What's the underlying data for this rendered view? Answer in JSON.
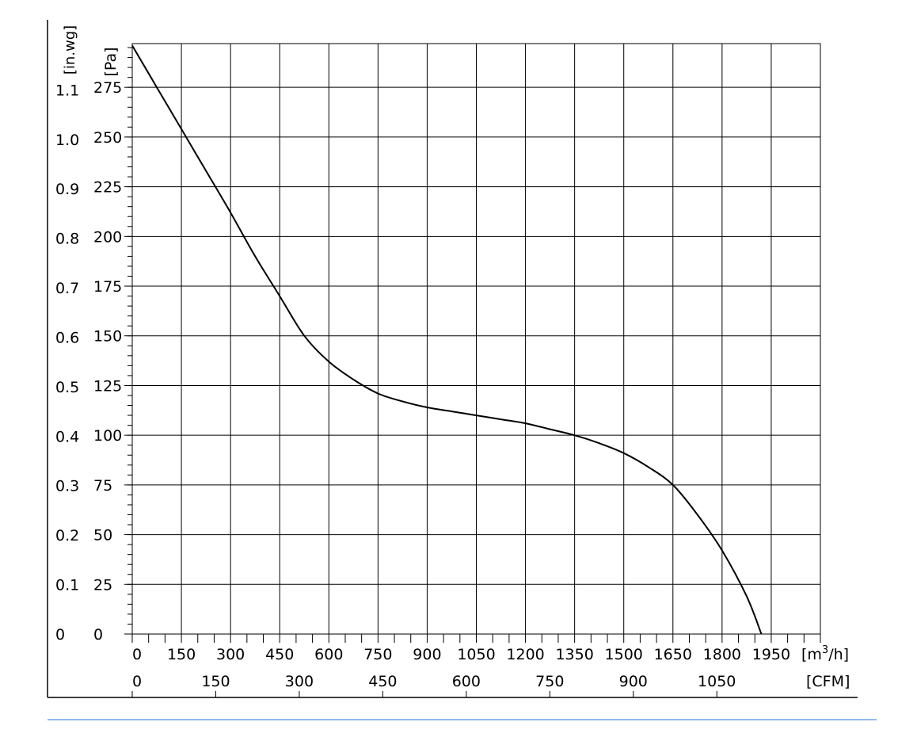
{
  "chart_data": {
    "type": "line",
    "title": "",
    "xlabel": "[m3/h]",
    "x_unit_label": {
      "base": "[m",
      "sup": "3",
      "rest": "/h]"
    },
    "x2_unit_label": "[CFM]",
    "y_unit_label": "[Pa]",
    "y2_unit_label": "[in.wg]",
    "xlim": [
      0,
      2100
    ],
    "ylim": [
      0,
      297
    ],
    "x_ticks": [
      0,
      150,
      300,
      450,
      600,
      750,
      900,
      1050,
      1200,
      1350,
      1500,
      1650,
      1800,
      1950
    ],
    "x_tick_labels": [
      "0",
      "150",
      "300",
      "450",
      "600",
      "750",
      "900",
      "1050",
      "1200",
      "1350",
      "1500",
      "1650",
      "1800",
      "1950"
    ],
    "cfm_ticks": [
      0,
      150,
      300,
      450,
      600,
      750,
      900,
      1050
    ],
    "cfm_tick_labels": [
      "0",
      "150",
      "300",
      "450",
      "600",
      "750",
      "900",
      "1050"
    ],
    "y_ticks": [
      0,
      25,
      50,
      75,
      100,
      125,
      150,
      175,
      200,
      225,
      250,
      275
    ],
    "y_tick_labels": [
      "0",
      "25",
      "50",
      "75",
      "100",
      "125",
      "150",
      "175",
      "200",
      "225",
      "250",
      "275"
    ],
    "inwg_ticks": [
      0,
      0.1,
      0.2,
      0.3,
      0.4,
      0.5,
      0.6,
      0.7,
      0.8,
      0.9,
      1.0,
      1.1
    ],
    "inwg_tick_labels": [
      "0",
      "0.1",
      "0.2",
      "0.3",
      "0.4",
      "0.5",
      "0.6",
      "0.7",
      "0.8",
      "0.9",
      "1.0",
      "1.1"
    ],
    "grid": true,
    "series": [
      {
        "x": [
          0,
          75,
          150,
          225,
          300,
          375,
          450,
          525,
          600,
          675,
          750,
          825,
          900,
          975,
          1050,
          1125,
          1200,
          1275,
          1350,
          1425,
          1500,
          1575,
          1650,
          1725,
          1800,
          1875,
          1920
        ],
        "values": [
          296,
          275,
          254,
          233,
          212,
          190,
          170,
          150,
          137,
          128,
          121,
          117,
          114,
          112,
          110,
          108,
          106,
          103,
          100,
          96,
          91,
          84,
          75,
          60,
          42,
          19,
          0
        ]
      }
    ]
  },
  "colors": {
    "line": "#000000",
    "divider": "#6fa4e8"
  }
}
